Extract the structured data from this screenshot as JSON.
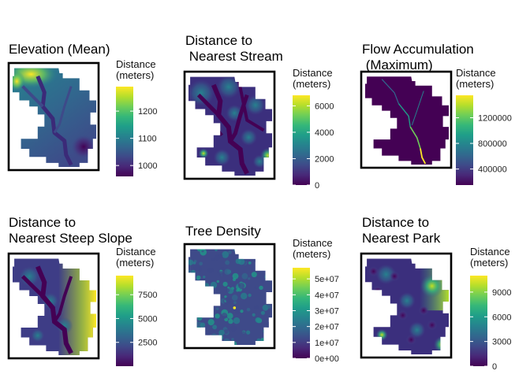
{
  "colors": {
    "viridis": [
      "#440154",
      "#482878",
      "#3e4a89",
      "#31688e",
      "#26828e",
      "#1f9e89",
      "#35b779",
      "#6ece58",
      "#b5de2b",
      "#fde725"
    ],
    "frame": "#000000",
    "background": "#ffffff"
  },
  "chart_data": [
    {
      "type": "heatmap",
      "title": [
        "Elevation (Mean)"
      ],
      "legend_title": [
        "Distance",
        "(meters)"
      ],
      "value_range": [
        960,
        1290
      ],
      "ticks": [
        {
          "value": 1000,
          "label": "1000"
        },
        {
          "value": 1100,
          "label": "1100"
        },
        {
          "value": 1200,
          "label": "1200"
        }
      ],
      "legend_position": "right"
    },
    {
      "type": "heatmap",
      "title": [
        "Distance to",
        " Nearest Stream"
      ],
      "legend_title": [
        "Distance",
        "(meters)"
      ],
      "value_range": [
        0,
        6800
      ],
      "ticks": [
        {
          "value": 0,
          "label": "0"
        },
        {
          "value": 2000,
          "label": "2000"
        },
        {
          "value": 4000,
          "label": "4000"
        },
        {
          "value": 6000,
          "label": "6000"
        }
      ],
      "legend_position": "right"
    },
    {
      "type": "heatmap",
      "title": [
        "Flow Accumulation",
        " (Maximum)"
      ],
      "legend_title": [
        "Distance",
        "(meters)"
      ],
      "value_range": [
        150000,
        1550000
      ],
      "ticks": [
        {
          "value": 400000,
          "label": "400000"
        },
        {
          "value": 800000,
          "label": "800000"
        },
        {
          "value": 1200000,
          "label": "1200000"
        }
      ],
      "legend_position": "right"
    },
    {
      "type": "heatmap",
      "title": [
        "Distance to",
        "Nearest Steep Slope"
      ],
      "legend_title": [
        "Distance",
        "(meters)"
      ],
      "value_range": [
        0,
        9500
      ],
      "ticks": [
        {
          "value": 2500,
          "label": "2500"
        },
        {
          "value": 5000,
          "label": "5000"
        },
        {
          "value": 7500,
          "label": "7500"
        }
      ],
      "legend_position": "right"
    },
    {
      "type": "heatmap",
      "title": [
        "Tree Density"
      ],
      "legend_title": [
        "Distance",
        "(meters)"
      ],
      "value_range": [
        0,
        57000000
      ],
      "ticks": [
        {
          "value": 0,
          "label": "0e+00"
        },
        {
          "value": 10000000,
          "label": "1e+07"
        },
        {
          "value": 20000000,
          "label": "2e+07"
        },
        {
          "value": 30000000,
          "label": "3e+07"
        },
        {
          "value": 40000000,
          "label": "4e+07"
        },
        {
          "value": 50000000,
          "label": "5e+07"
        }
      ],
      "legend_position": "right"
    },
    {
      "type": "heatmap",
      "title": [
        "Distance to",
        "Nearest Park"
      ],
      "legend_title": [
        "Distance",
        "(meters)"
      ],
      "value_range": [
        0,
        11000
      ],
      "ticks": [
        {
          "value": 0,
          "label": "0"
        },
        {
          "value": 3000,
          "label": "3000"
        },
        {
          "value": 6000,
          "label": "6000"
        },
        {
          "value": 9000,
          "label": "9000"
        }
      ],
      "legend_position": "right"
    }
  ]
}
